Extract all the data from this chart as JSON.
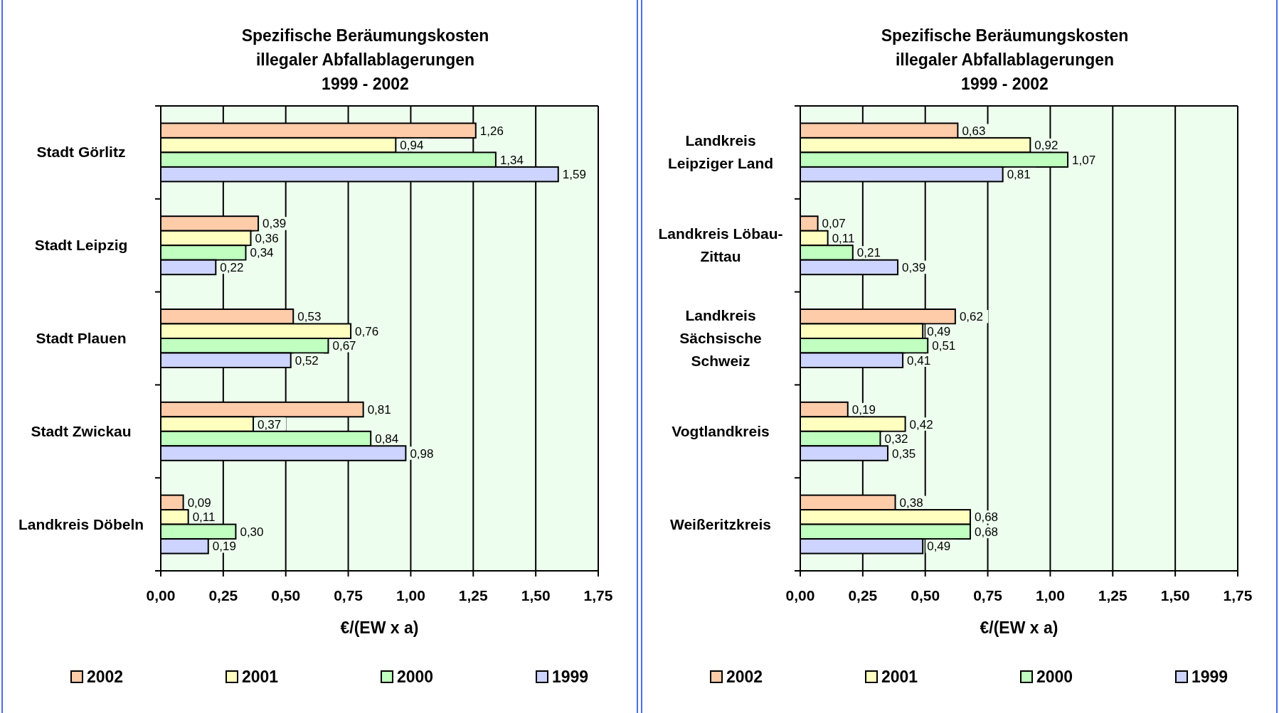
{
  "chart_data": [
    {
      "type": "bar",
      "orientation": "horizontal",
      "title": "Spezifische Beräumungskosten\nillegaler Abfallablagerungen\n1999 - 2002",
      "xlabel": "€/(EW x a)",
      "categories": [
        "Stadt Görlitz",
        "Stadt Leipzig",
        "Stadt Plauen",
        "Stadt Zwickau",
        "Landkreis Döbeln"
      ],
      "series": [
        {
          "name": "2002",
          "color": "#ffccaa",
          "values": [
            1.26,
            0.39,
            0.53,
            0.81,
            0.09
          ],
          "value_labels": [
            "1,26",
            "0,39",
            "0,53",
            "0,81",
            "0,09"
          ]
        },
        {
          "name": "2001",
          "color": "#ffffc0",
          "values": [
            0.94,
            0.36,
            0.76,
            0.37,
            0.11
          ],
          "value_labels": [
            "0,94",
            "0,36",
            "0,76",
            "0,37",
            "0,11"
          ]
        },
        {
          "name": "2000",
          "color": "#c0ffc0",
          "values": [
            1.34,
            0.34,
            0.67,
            0.84,
            0.3
          ],
          "value_labels": [
            "1,34",
            "0,34",
            "0,67",
            "0,84",
            "0,30"
          ]
        },
        {
          "name": "1999",
          "color": "#ccd4ff",
          "values": [
            1.59,
            0.22,
            0.52,
            0.98,
            0.19
          ],
          "value_labels": [
            "1,59",
            "0,22",
            "0,52",
            "0,98",
            "0,19"
          ]
        }
      ],
      "xlim": [
        0,
        1.75
      ],
      "xticks": [
        {
          "value": 0,
          "label": "0,00"
        },
        {
          "value": 0.25,
          "label": "0,25"
        },
        {
          "value": 0.5,
          "label": "0,50"
        },
        {
          "value": 0.75,
          "label": "0,75"
        },
        {
          "value": 1,
          "label": "1,00"
        },
        {
          "value": 1.25,
          "label": "1,25"
        },
        {
          "value": 1.5,
          "label": "1,50"
        },
        {
          "value": 1.75,
          "label": "1,75"
        }
      ],
      "grid": "x",
      "legend": "bottom"
    },
    {
      "type": "bar",
      "orientation": "horizontal",
      "title": "Spezifische Beräumungskosten\nillegaler Abfallablagerungen\n1999 - 2002",
      "xlabel": "€/(EW x a)",
      "categories": [
        "Landkreis\nLeipziger Land",
        "Landkreis Löbau-\nZittau",
        "Landkreis\nSächsische\nSchweiz",
        "Vogtlandkreis",
        "Weißeritzkreis"
      ],
      "series": [
        {
          "name": "2002",
          "color": "#ffccaa",
          "values": [
            0.63,
            0.07,
            0.62,
            0.19,
            0.38
          ],
          "value_labels": [
            "0,63",
            "0,07",
            "0,62",
            "0,19",
            "0,38"
          ]
        },
        {
          "name": "2001",
          "color": "#ffffc0",
          "values": [
            0.92,
            0.11,
            0.49,
            0.42,
            0.68
          ],
          "value_labels": [
            "0,92",
            "0,11",
            "0,49",
            "0,42",
            "0,68"
          ]
        },
        {
          "name": "2000",
          "color": "#c0ffc0",
          "values": [
            1.07,
            0.21,
            0.51,
            0.32,
            0.68
          ],
          "value_labels": [
            "1,07",
            "0,21",
            "0,51",
            "0,32",
            "0,68"
          ]
        },
        {
          "name": "1999",
          "color": "#ccd4ff",
          "values": [
            0.81,
            0.39,
            0.41,
            0.35,
            0.49
          ],
          "value_labels": [
            "0,81",
            "0,39",
            "0,41",
            "0,35",
            "0,49"
          ]
        }
      ],
      "xlim": [
        0,
        1.75
      ],
      "xticks": [
        {
          "value": 0,
          "label": "0,00"
        },
        {
          "value": 0.25,
          "label": "0,25"
        },
        {
          "value": 0.5,
          "label": "0,50"
        },
        {
          "value": 0.75,
          "label": "0,75"
        },
        {
          "value": 1,
          "label": "1,00"
        },
        {
          "value": 1.25,
          "label": "1,25"
        },
        {
          "value": 1.5,
          "label": "1,50"
        },
        {
          "value": 1.75,
          "label": "1,75"
        }
      ],
      "grid": "x",
      "legend": "bottom"
    }
  ]
}
